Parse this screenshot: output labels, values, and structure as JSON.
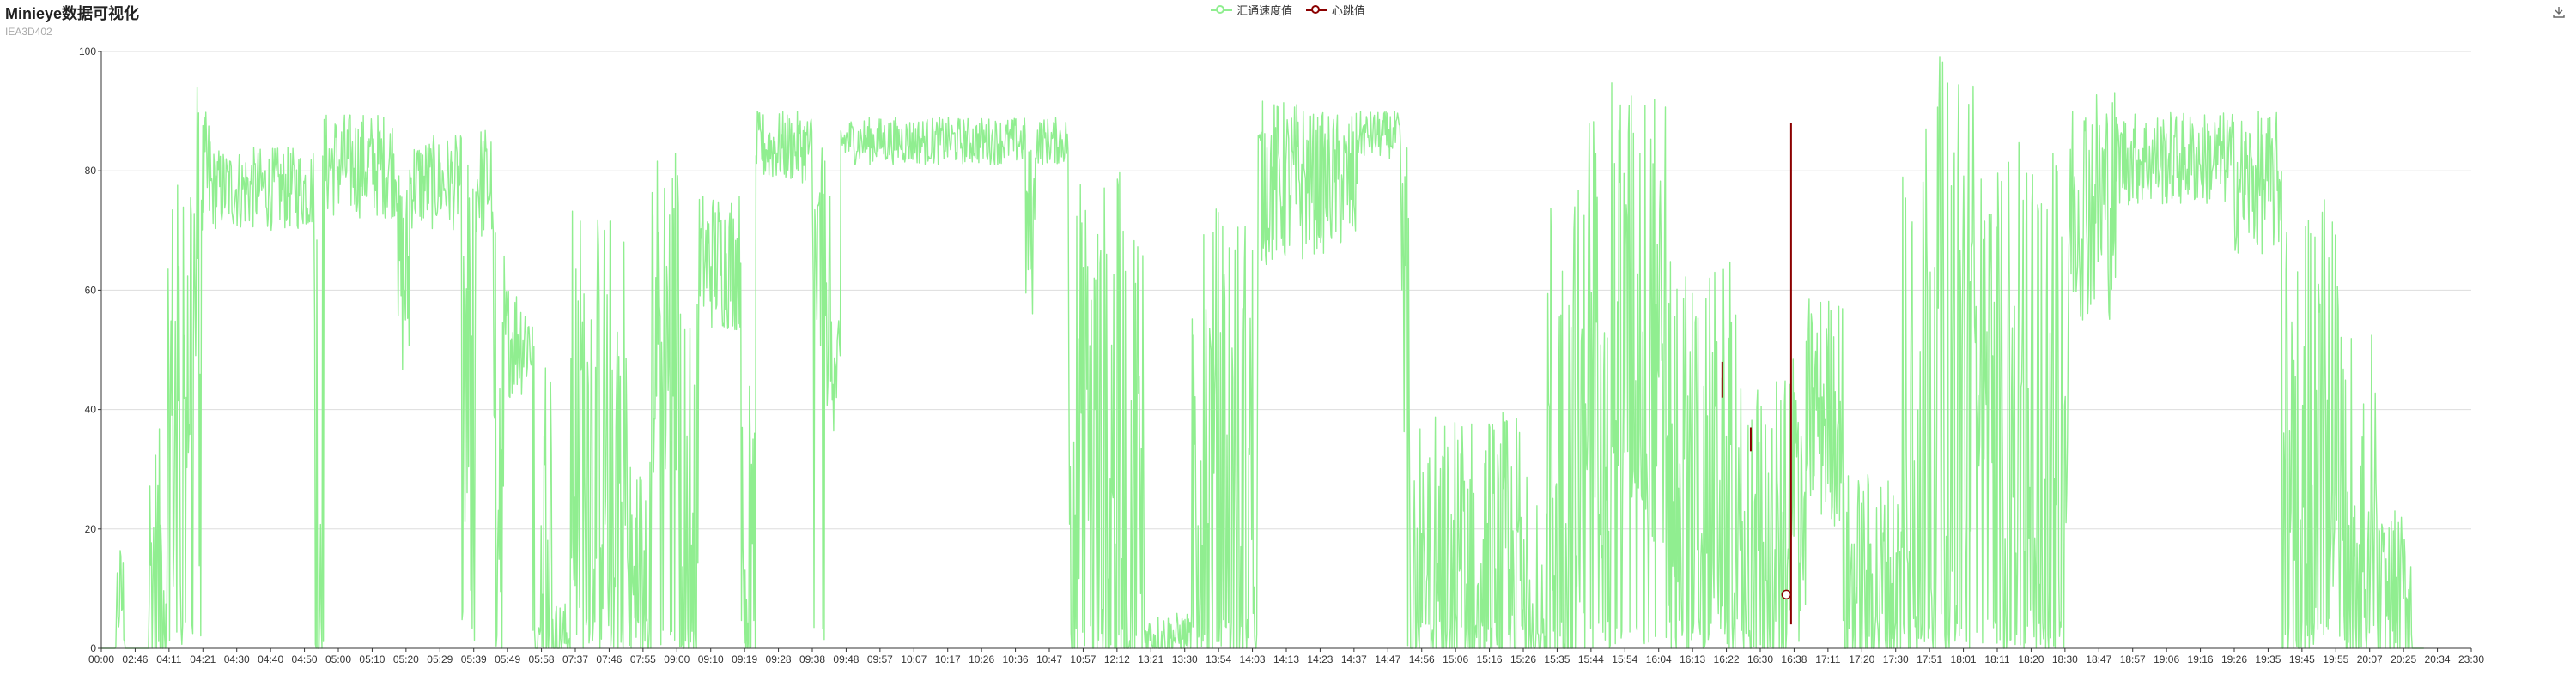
{
  "header": {
    "title": "Minieye数据可视化",
    "subtitle": "IEA3D402"
  },
  "legend": {
    "items": [
      {
        "label": "汇通速度值",
        "color": "#90ee90"
      },
      {
        "label": "心跳值",
        "color": "#8b0000"
      }
    ]
  },
  "toolbox": {
    "icon": "download-icon"
  },
  "colors": {
    "speed": "#90ee90",
    "heartbeat": "#8b0000",
    "grid": "#dddddd",
    "axis": "#333333"
  },
  "chart_data": {
    "type": "line",
    "title": "Minieye数据可视化",
    "subtitle": "IEA3D402",
    "ylim": [
      0,
      100
    ],
    "yticks": [
      0,
      20,
      40,
      60,
      80,
      100
    ],
    "x_tick_labels": [
      "00:00",
      "02:46",
      "04:11",
      "04:21",
      "04:30",
      "04:40",
      "04:50",
      "05:00",
      "05:10",
      "05:20",
      "05:29",
      "05:39",
      "05:49",
      "05:58",
      "07:37",
      "07:46",
      "07:55",
      "09:00",
      "09:10",
      "09:19",
      "09:28",
      "09:38",
      "09:48",
      "09:57",
      "10:07",
      "10:17",
      "10:26",
      "10:36",
      "10:47",
      "10:57",
      "12:12",
      "13:21",
      "13:30",
      "13:54",
      "14:03",
      "14:13",
      "14:23",
      "14:37",
      "14:47",
      "14:56",
      "15:06",
      "15:16",
      "15:26",
      "15:35",
      "15:44",
      "15:54",
      "16:04",
      "16:13",
      "16:22",
      "16:30",
      "16:38",
      "17:11",
      "17:20",
      "17:30",
      "17:51",
      "18:01",
      "18:11",
      "18:20",
      "18:30",
      "18:47",
      "18:57",
      "19:06",
      "19:16",
      "19:26",
      "19:35",
      "19:45",
      "19:55",
      "20:07",
      "20:25",
      "20:34",
      "23:30"
    ],
    "grid": true,
    "legend_position": "top-center",
    "series": [
      {
        "name": "汇通速度值",
        "color": "#90ee90",
        "segments": [
          {
            "from": 0.0,
            "to": 0.006,
            "base": 0,
            "spread": 0,
            "events": [
              [
                0.006,
                10
              ]
            ]
          },
          {
            "from": 0.006,
            "to": 0.01,
            "base": 8,
            "spread": 10
          },
          {
            "from": 0.01,
            "to": 0.02,
            "base": 0,
            "spread": 0
          },
          {
            "from": 0.02,
            "to": 0.028,
            "base": 12,
            "spread": 25
          },
          {
            "from": 0.028,
            "to": 0.034,
            "base": 40,
            "spread": 40
          },
          {
            "from": 0.034,
            "to": 0.042,
            "base": 55,
            "spread": 45
          },
          {
            "from": 0.042,
            "to": 0.046,
            "base": 78,
            "spread": 12
          },
          {
            "from": 0.046,
            "to": 0.09,
            "base": 77,
            "spread": 7
          },
          {
            "from": 0.09,
            "to": 0.094,
            "base": 30,
            "spread": 60
          },
          {
            "from": 0.094,
            "to": 0.125,
            "base": 81,
            "spread": 9
          },
          {
            "from": 0.125,
            "to": 0.13,
            "base": 62,
            "spread": 18
          },
          {
            "from": 0.13,
            "to": 0.152,
            "base": 78,
            "spread": 8
          },
          {
            "from": 0.152,
            "to": 0.158,
            "base": 40,
            "spread": 45
          },
          {
            "from": 0.158,
            "to": 0.165,
            "base": 78,
            "spread": 10
          },
          {
            "from": 0.165,
            "to": 0.17,
            "base": 35,
            "spread": 45
          },
          {
            "from": 0.17,
            "to": 0.182,
            "base": 52,
            "spread": 10
          },
          {
            "from": 0.182,
            "to": 0.19,
            "base": 20,
            "spread": 35
          },
          {
            "from": 0.19,
            "to": 0.198,
            "base": 2,
            "spread": 6
          },
          {
            "from": 0.198,
            "to": 0.222,
            "base": 35,
            "spread": 40
          },
          {
            "from": 0.222,
            "to": 0.232,
            "base": 8,
            "spread": 25
          },
          {
            "from": 0.232,
            "to": 0.244,
            "base": 55,
            "spread": 30
          },
          {
            "from": 0.244,
            "to": 0.252,
            "base": 20,
            "spread": 40
          },
          {
            "from": 0.252,
            "to": 0.27,
            "base": 65,
            "spread": 12
          },
          {
            "from": 0.27,
            "to": 0.276,
            "base": 15,
            "spread": 30
          },
          {
            "from": 0.276,
            "to": 0.3,
            "base": 84,
            "spread": 6
          },
          {
            "from": 0.3,
            "to": 0.308,
            "base": 62,
            "spread": 22
          },
          {
            "from": 0.308,
            "to": 0.312,
            "base": 45,
            "spread": 10
          },
          {
            "from": 0.312,
            "to": 0.39,
            "base": 85,
            "spread": 4
          },
          {
            "from": 0.39,
            "to": 0.394,
            "base": 70,
            "spread": 15
          },
          {
            "from": 0.394,
            "to": 0.408,
            "base": 85,
            "spread": 4
          },
          {
            "from": 0.408,
            "to": 0.44,
            "base": 25,
            "spread": 55
          },
          {
            "from": 0.44,
            "to": 0.46,
            "base": 2,
            "spread": 4
          },
          {
            "from": 0.46,
            "to": 0.488,
            "base": 30,
            "spread": 45
          },
          {
            "from": 0.488,
            "to": 0.508,
            "base": 78,
            "spread": 14
          },
          {
            "from": 0.508,
            "to": 0.53,
            "base": 78,
            "spread": 12
          },
          {
            "from": 0.53,
            "to": 0.548,
            "base": 86,
            "spread": 4
          },
          {
            "from": 0.548,
            "to": 0.552,
            "base": 60,
            "spread": 25
          },
          {
            "from": 0.552,
            "to": 0.61,
            "base": 12,
            "spread": 28
          },
          {
            "from": 0.61,
            "to": 0.626,
            "base": 25,
            "spread": 55
          },
          {
            "from": 0.626,
            "to": 0.66,
            "base": 55,
            "spread": 40
          },
          {
            "from": 0.66,
            "to": 0.69,
            "base": 30,
            "spread": 35
          },
          {
            "from": 0.69,
            "to": 0.712,
            "base": 15,
            "spread": 30
          },
          {
            "from": 0.712,
            "to": 0.72,
            "base": 30,
            "spread": 25
          },
          {
            "from": 0.72,
            "to": 0.735,
            "base": 40,
            "spread": 20
          },
          {
            "from": 0.735,
            "to": 0.76,
            "base": 10,
            "spread": 20
          },
          {
            "from": 0.76,
            "to": 0.79,
            "base": 45,
            "spread": 55
          },
          {
            "from": 0.79,
            "to": 0.802,
            "base": 55,
            "spread": 25
          },
          {
            "from": 0.802,
            "to": 0.83,
            "base": 40,
            "spread": 45
          },
          {
            "from": 0.83,
            "to": 0.85,
            "base": 75,
            "spread": 20
          },
          {
            "from": 0.85,
            "to": 0.9,
            "base": 82,
            "spread": 8
          },
          {
            "from": 0.9,
            "to": 0.92,
            "base": 78,
            "spread": 12
          },
          {
            "from": 0.92,
            "to": 0.935,
            "base": 30,
            "spread": 45
          },
          {
            "from": 0.935,
            "to": 0.945,
            "base": 45,
            "spread": 35
          },
          {
            "from": 0.945,
            "to": 0.96,
            "base": 20,
            "spread": 35
          },
          {
            "from": 0.96,
            "to": 0.975,
            "base": 8,
            "spread": 15
          },
          {
            "from": 0.975,
            "to": 0.98,
            "base": 0,
            "spread": 0
          }
        ]
      },
      {
        "name": "心跳值",
        "color": "#8b0000",
        "spikes": [
          {
            "x": 0.684,
            "y0": 42,
            "y1": 48
          },
          {
            "x": 0.696,
            "y0": 33,
            "y1": 37
          },
          {
            "x": 0.713,
            "y0": 4,
            "y1": 88
          }
        ],
        "marker": {
          "x": 0.711,
          "y": 9
        }
      }
    ]
  }
}
